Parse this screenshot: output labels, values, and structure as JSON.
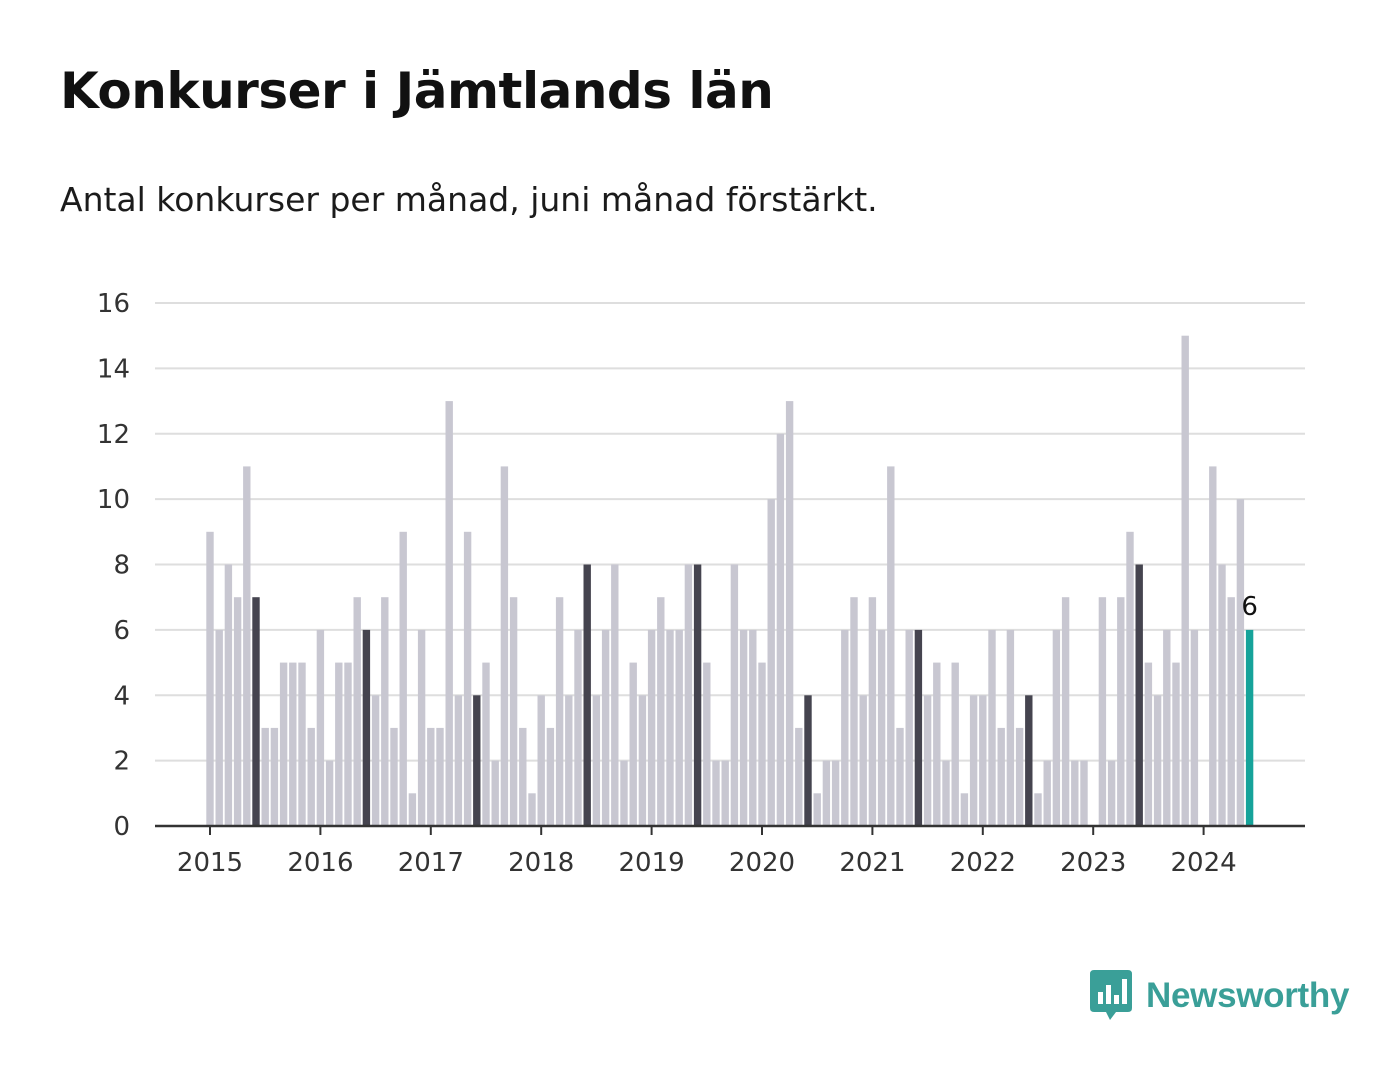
{
  "title": "Konkurser i Jämtlands län",
  "subtitle": "Antal konkurser per månad, juni månad förstärkt.",
  "logo": {
    "text": "Newsworthy",
    "icon": "bar-chart-speech-bubble-icon",
    "color": "#3a9f98"
  },
  "colors": {
    "bar": "#c8c7d1",
    "highlight_june": "#45444f",
    "latest": "#16a39a",
    "grid": "#dedede",
    "axis": "#333333"
  },
  "chart_data": {
    "type": "bar",
    "title": "Konkurser i Jämtlands län",
    "subtitle": "Antal konkurser per månad, juni månad förstärkt.",
    "xlabel": "",
    "ylabel": "",
    "ylim": [
      0,
      16
    ],
    "yticks": [
      0,
      2,
      4,
      6,
      8,
      10,
      12,
      14,
      16
    ],
    "grid": true,
    "x_tick_labels": [
      "2015",
      "2016",
      "2017",
      "2018",
      "2019",
      "2020",
      "2021",
      "2022",
      "2023",
      "2024"
    ],
    "start": "2015-01",
    "end": "2024-06",
    "highlight": "juni",
    "value_label": "6",
    "values": [
      9,
      6,
      8,
      7,
      11,
      7,
      3,
      3,
      5,
      5,
      5,
      3,
      6,
      2,
      5,
      5,
      7,
      6,
      4,
      7,
      3,
      9,
      1,
      6,
      3,
      3,
      13,
      4,
      9,
      4,
      5,
      2,
      11,
      7,
      3,
      1,
      4,
      3,
      7,
      4,
      6,
      8,
      4,
      6,
      8,
      2,
      5,
      4,
      6,
      7,
      6,
      6,
      8,
      8,
      5,
      2,
      2,
      8,
      6,
      6,
      5,
      10,
      12,
      13,
      3,
      4,
      1,
      2,
      2,
      6,
      7,
      4,
      7,
      6,
      11,
      3,
      6,
      6,
      4,
      5,
      2,
      5,
      1,
      4,
      4,
      6,
      3,
      6,
      3,
      4,
      1,
      2,
      6,
      7,
      2,
      2,
      0,
      7,
      2,
      7,
      9,
      8,
      5,
      4,
      6,
      5,
      15,
      6,
      0,
      11,
      8,
      7,
      10,
      6
    ]
  }
}
